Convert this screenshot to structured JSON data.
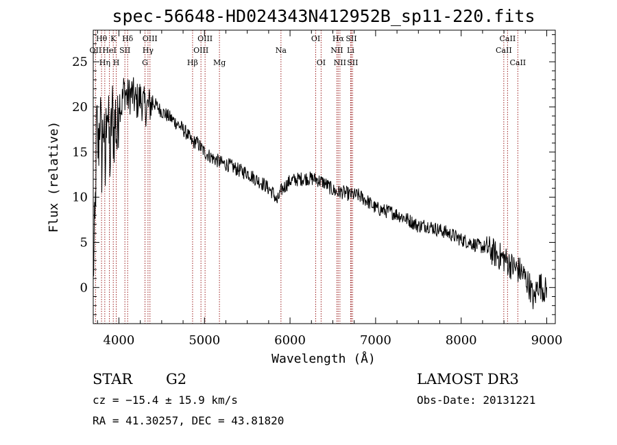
{
  "chart_data": {
    "type": "line",
    "title": "spec-56648-HD024343N412952B_sp11-220.fits",
    "xlabel": "Wavelength (Å)",
    "ylabel": "Flux (relative)",
    "xlim": [
      3700,
      9100
    ],
    "ylim": [
      -4,
      28.5
    ],
    "x_ticks": [
      4000,
      5000,
      6000,
      7000,
      8000,
      9000
    ],
    "y_ticks": [
      0,
      5,
      10,
      15,
      20,
      25
    ],
    "spectrum_nodes": [
      [
        3700,
        2
      ],
      [
        3720,
        6
      ],
      [
        3740,
        18
      ],
      [
        3760,
        15
      ],
      [
        3780,
        20
      ],
      [
        3800,
        14
      ],
      [
        3820,
        19
      ],
      [
        3840,
        12
      ],
      [
        3860,
        22
      ],
      [
        3880,
        17
      ],
      [
        3900,
        14
      ],
      [
        3920,
        20
      ],
      [
        3940,
        17
      ],
      [
        3960,
        19
      ],
      [
        3980,
        16
      ],
      [
        4000,
        21
      ],
      [
        4030,
        20
      ],
      [
        4060,
        22
      ],
      [
        4100,
        21
      ],
      [
        4150,
        21.5
      ],
      [
        4200,
        20.5
      ],
      [
        4250,
        21
      ],
      [
        4300,
        20
      ],
      [
        4340,
        20
      ],
      [
        4400,
        20.5
      ],
      [
        4500,
        19.5
      ],
      [
        4600,
        18.8
      ],
      [
        4700,
        18
      ],
      [
        4800,
        17
      ],
      [
        4860,
        16
      ],
      [
        4900,
        16.2
      ],
      [
        5000,
        15
      ],
      [
        5100,
        14.3
      ],
      [
        5200,
        13.8
      ],
      [
        5300,
        13.5
      ],
      [
        5400,
        13
      ],
      [
        5500,
        12.7
      ],
      [
        5600,
        12
      ],
      [
        5700,
        11.4
      ],
      [
        5800,
        10.5
      ],
      [
        5850,
        9.5
      ],
      [
        5900,
        10.8
      ],
      [
        6000,
        11.8
      ],
      [
        6100,
        12
      ],
      [
        6200,
        12.1
      ],
      [
        6300,
        12
      ],
      [
        6400,
        11.6
      ],
      [
        6500,
        10.8
      ],
      [
        6560,
        10.5
      ],
      [
        6600,
        10.6
      ],
      [
        6700,
        10.3
      ],
      [
        6800,
        10.2
      ],
      [
        6900,
        9.6
      ],
      [
        7000,
        8.8
      ],
      [
        7100,
        8.5
      ],
      [
        7200,
        8.3
      ],
      [
        7300,
        7.9
      ],
      [
        7400,
        7.4
      ],
      [
        7500,
        6.8
      ],
      [
        7600,
        6.9
      ],
      [
        7700,
        6.5
      ],
      [
        7800,
        6.2
      ],
      [
        7900,
        5.8
      ],
      [
        8000,
        5.3
      ],
      [
        8100,
        5.0
      ],
      [
        8200,
        4.6
      ],
      [
        8300,
        4.4
      ],
      [
        8400,
        3.7
      ],
      [
        8500,
        3.2
      ],
      [
        8600,
        2.3
      ],
      [
        8700,
        1.8
      ],
      [
        8800,
        0.2
      ],
      [
        8850,
        -1.5
      ],
      [
        8900,
        0.5
      ],
      [
        9000,
        -0.5
      ]
    ],
    "lines": [
      {
        "label": "Hθ",
        "x": 3797,
        "row": 0
      },
      {
        "label": "OII",
        "x": 3727,
        "row": 1
      },
      {
        "label": "Hη",
        "x": 3835,
        "row": 2
      },
      {
        "label": "K",
        "x": 3934,
        "row": 0
      },
      {
        "label": "HeI",
        "x": 3889,
        "row": 1
      },
      {
        "label": "H",
        "x": 3969,
        "row": 2
      },
      {
        "label": "Hδ",
        "x": 4102,
        "row": 0
      },
      {
        "label": "SII",
        "x": 4070,
        "row": 1
      },
      {
        "label": "OIII",
        "x": 4363,
        "row": 0
      },
      {
        "label": "Hγ",
        "x": 4340,
        "row": 1
      },
      {
        "label": "G",
        "x": 4305,
        "row": 2
      },
      {
        "label": "Hβ",
        "x": 4861,
        "row": 2
      },
      {
        "label": "OIII",
        "x": 5007,
        "row": 0
      },
      {
        "label": "OIII",
        "x": 4959,
        "row": 1
      },
      {
        "label": "Mg",
        "x": 5175,
        "row": 2
      },
      {
        "label": "Na",
        "x": 5894,
        "row": 1
      },
      {
        "label": "OI",
        "x": 6300,
        "row": 0
      },
      {
        "label": "OI",
        "x": 6363,
        "row": 2
      },
      {
        "label": "Hα",
        "x": 6563,
        "row": 0
      },
      {
        "label": "NII",
        "x": 6548,
        "row": 1
      },
      {
        "label": "NII",
        "x": 6583,
        "row": 2
      },
      {
        "label": "SII",
        "x": 6716,
        "row": 0
      },
      {
        "label": "Li",
        "x": 6708,
        "row": 1
      },
      {
        "label": "SII",
        "x": 6731,
        "row": 2
      },
      {
        "label": "CaII",
        "x": 8542,
        "row": 0
      },
      {
        "label": "CaII",
        "x": 8498,
        "row": 1
      },
      {
        "label": "CaII",
        "x": 8662,
        "row": 2
      }
    ]
  },
  "info": {
    "class": "STAR",
    "subclass": "G2",
    "survey": "LAMOST DR3",
    "cz": "cz = −15.4 ± 15.9 km/s",
    "obs_date": "Obs-Date: 20131221",
    "coords": "RA =  41.30257, DEC =  43.81820"
  },
  "colors": {
    "line_marker": "#9a1a1a",
    "spectrum": "#000000"
  }
}
